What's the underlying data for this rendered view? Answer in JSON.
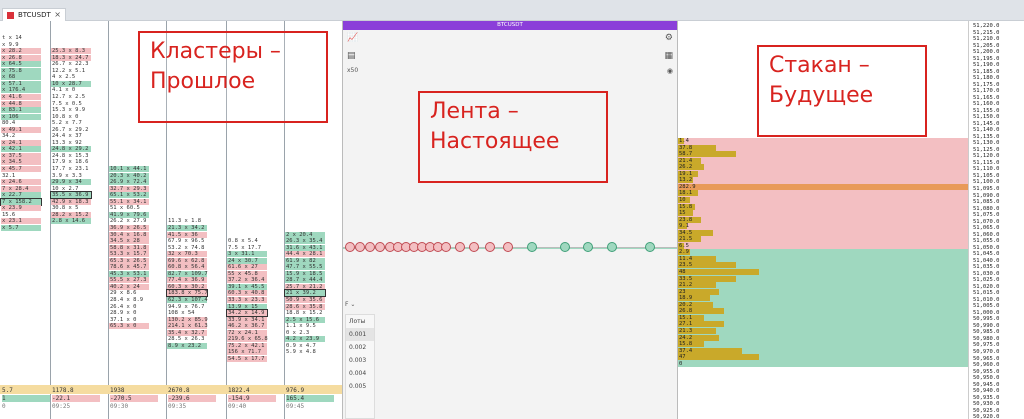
{
  "tab": {
    "title": "BTCUSDT",
    "close": "×"
  },
  "tape": {
    "header": "BTCUSDT",
    "zoom": "x50",
    "filter_label": "F",
    "lots_header": "Лоты",
    "lots": [
      "0.001",
      "0.002",
      "0.003",
      "0.004",
      "0.005"
    ]
  },
  "annotations": {
    "past": [
      "Кластеры –",
      "Прошлое"
    ],
    "present": [
      "Лента –",
      "Настоящее"
    ],
    "future": [
      "Стакан –",
      "Будущее"
    ]
  },
  "cluster_footer": {
    "totals": [
      "5.7",
      "1178.8",
      "1938",
      "2670.8",
      "1822.4",
      "976.9"
    ],
    "deltas": [
      "1",
      "-22.1",
      "-270.5",
      "-239.6",
      "-154.9",
      "165.4"
    ],
    "times": [
      "0",
      "09:25",
      "09:30",
      "09:35",
      "09:40",
      "09:45"
    ]
  },
  "price_axis": [
    "51,220.0",
    "51,215.0",
    "51,210.0",
    "51,205.0",
    "51,200.0",
    "51,195.0",
    "51,190.0",
    "51,185.0",
    "51,180.0",
    "51,175.0",
    "51,170.0",
    "51,165.0",
    "51,160.0",
    "51,155.0",
    "51,150.0",
    "51,145.0",
    "51,140.0",
    "51,135.0",
    "51,130.0",
    "51,125.0",
    "51,120.0",
    "51,115.0",
    "51,110.0",
    "51,105.0",
    "51,100.0",
    "51,095.0",
    "51,090.0",
    "51,085.0",
    "51,080.0",
    "51,075.0",
    "51,070.0",
    "51,065.0",
    "51,060.0",
    "51,055.0",
    "51,050.0",
    "51,045.0",
    "51,040.0",
    "51,035.0",
    "51,030.0",
    "51,025.0",
    "51,020.0",
    "51,015.0",
    "51,010.0",
    "51,005.0",
    "51,000.0",
    "50,995.0",
    "50,990.0",
    "50,985.0",
    "50,980.0",
    "50,975.0",
    "50,970.0",
    "50,965.0",
    "50,960.0",
    "50,955.0",
    "50,950.0",
    "50,945.0",
    "50,940.0",
    "50,935.0",
    "50,930.0",
    "50,925.0",
    "50,920.0"
  ],
  "dom": {
    "asks": [
      "1.4",
      "37.8",
      "58.7",
      "21.4",
      "26.2",
      "19.1",
      "13.2",
      "282.9",
      "18.1",
      "10",
      "15.8",
      "15",
      "23.8",
      "9.1",
      "34.5",
      "21.5",
      "6.5"
    ],
    "bids": [
      "2.9",
      "11.4",
      "23.5",
      "48",
      "33.5",
      "21.2",
      "23",
      "18.9",
      "20.2",
      "26.8",
      "15.1",
      "27.1",
      "21.3",
      "24.2",
      "15.8",
      "37.4",
      "47",
      "0"
    ],
    "ask_sizes": [
      0.02,
      0.13,
      0.2,
      0.08,
      0.09,
      0.07,
      0.05,
      1.0,
      0.07,
      0.04,
      0.06,
      0.05,
      0.08,
      0.03,
      0.12,
      0.08,
      0.02
    ],
    "bid_sizes": [
      0.04,
      0.13,
      0.2,
      0.28,
      0.2,
      0.13,
      0.14,
      0.11,
      0.12,
      0.16,
      0.09,
      0.16,
      0.13,
      0.14,
      0.09,
      0.22,
      0.28,
      0.0
    ]
  },
  "clusters": [
    {
      "col": 0,
      "cells": [
        {
          "r": 0,
          "t": "t x 14"
        },
        {
          "r": 1,
          "t": "x 9.9"
        },
        {
          "r": 2,
          "t": "x 28.2",
          "c": "red"
        },
        {
          "r": 3,
          "t": "x 26.8",
          "c": "red"
        },
        {
          "r": 4,
          "t": "x 64.5",
          "c": "grn"
        },
        {
          "r": 5,
          "t": "x 75.8",
          "c": "grn"
        },
        {
          "r": 6,
          "t": "x 68",
          "c": "grn"
        },
        {
          "r": 7,
          "t": "x 57.1",
          "c": "grn"
        },
        {
          "r": 8,
          "t": "x 176.4",
          "c": "grn"
        },
        {
          "r": 9,
          "t": "x 41.6",
          "c": "red"
        },
        {
          "r": 10,
          "t": "x 44.8",
          "c": "red"
        },
        {
          "r": 11,
          "t": "x 83.1",
          "c": "grn"
        },
        {
          "r": 12,
          "t": "x 106",
          "c": "grn"
        },
        {
          "r": 13,
          "t": "80.4"
        },
        {
          "r": 14,
          "t": "x 49.1",
          "c": "red"
        },
        {
          "r": 15,
          "t": "34.2"
        },
        {
          "r": 16,
          "t": "x 24.1",
          "c": "red"
        },
        {
          "r": 17,
          "t": "x 42.1",
          "c": "grn"
        },
        {
          "r": 18,
          "t": "x 37.5",
          "c": "red"
        },
        {
          "r": 19,
          "t": "x 34.5",
          "c": "red"
        },
        {
          "r": 20,
          "t": "x 45.7",
          "c": "red"
        },
        {
          "r": 21,
          "t": "32.1"
        },
        {
          "r": 22,
          "t": "x 24.6",
          "c": "red"
        },
        {
          "r": 23,
          "t": "7 x 28.4",
          "c": "red"
        },
        {
          "r": 24,
          "t": "x 22.7",
          "c": "grn"
        },
        {
          "r": 25,
          "t": "7 x 158.2",
          "c": "grn",
          "poc": true
        },
        {
          "r": 26,
          "t": "x 23.9",
          "c": "red"
        },
        {
          "r": 27,
          "t": "15.6"
        },
        {
          "r": 28,
          "t": "x 23.1",
          "c": "red"
        },
        {
          "r": 29,
          "t": "x 5.7",
          "c": "grn"
        }
      ]
    },
    {
      "col": 1,
      "cells": [
        {
          "r": 2,
          "t": "25.3 x 8.3",
          "c": "red"
        },
        {
          "r": 3,
          "t": "18.3 x 24.7",
          "c": "red"
        },
        {
          "r": 4,
          "t": "26.7 x 22.3"
        },
        {
          "r": 5,
          "t": "12.2 x 5.1"
        },
        {
          "r": 6,
          "t": "4 x 2.5"
        },
        {
          "r": 7,
          "t": "10 x 28.7",
          "c": "grn"
        },
        {
          "r": 8,
          "t": "4.1 x 0"
        },
        {
          "r": 9,
          "t": "12.7 x 2.5"
        },
        {
          "r": 10,
          "t": "7.5 x 0.5"
        },
        {
          "r": 11,
          "t": "15.3 x 9.9"
        },
        {
          "r": 12,
          "t": "10.8 x 0"
        },
        {
          "r": 13,
          "t": "5.2 x 7.7"
        },
        {
          "r": 14,
          "t": "26.7 x 29.2"
        },
        {
          "r": 15,
          "t": "24.4 x 37"
        },
        {
          "r": 16,
          "t": "13.3 x 92"
        },
        {
          "r": 17,
          "t": "24.8 x 29.2",
          "c": "grn"
        },
        {
          "r": 18,
          "t": "24.8 x 15.3"
        },
        {
          "r": 19,
          "t": "17.9 x 18.6"
        },
        {
          "r": 20,
          "t": "17.7 x 23.1"
        },
        {
          "r": 21,
          "t": "3.9 x 3.3"
        },
        {
          "r": 22,
          "t": "29.9 x 34",
          "c": "grn"
        },
        {
          "r": 23,
          "t": "10 x 2.7"
        },
        {
          "r": 24,
          "t": "35.5 x 36.9",
          "c": "grn",
          "poc": true
        },
        {
          "r": 25,
          "t": "42.9 x 18.3",
          "c": "red"
        },
        {
          "r": 26,
          "t": "30.8 x 5"
        },
        {
          "r": 27,
          "t": "28.2 x 15.2",
          "c": "red"
        },
        {
          "r": 28,
          "t": "2.8 x 14.6",
          "c": "grn"
        }
      ]
    },
    {
      "col": 2,
      "cells": [
        {
          "r": 20,
          "t": "10.1 x 44.1",
          "c": "grn"
        },
        {
          "r": 21,
          "t": "20.3 x 40.2",
          "c": "grn"
        },
        {
          "r": 22,
          "t": "26.9 x 72.4",
          "c": "grn"
        },
        {
          "r": 23,
          "t": "32.7 x 29.3",
          "c": "red"
        },
        {
          "r": 24,
          "t": "65.1 x 53.2",
          "c": "grn"
        },
        {
          "r": 25,
          "t": "55.1 x 34.1",
          "c": "red"
        },
        {
          "r": 26,
          "t": "51 x 60.5"
        },
        {
          "r": 27,
          "t": "41.9 x 79.6",
          "c": "grn"
        },
        {
          "r": 28,
          "t": "26.2 x 27.9"
        },
        {
          "r": 29,
          "t": "36.9 x 26.5",
          "c": "red"
        },
        {
          "r": 30,
          "t": "30.4 x 16.8",
          "c": "red"
        },
        {
          "r": 31,
          "t": "34.5 x 28",
          "c": "red"
        },
        {
          "r": 32,
          "t": "58.8 x 31.8",
          "c": "red"
        },
        {
          "r": 33,
          "t": "53.3 x 15.7",
          "c": "red"
        },
        {
          "r": 34,
          "t": "65.3 x 26.5",
          "c": "red"
        },
        {
          "r": 35,
          "t": "78.6 x 45.7",
          "c": "red"
        },
        {
          "r": 36,
          "t": "45.3 x 53.1",
          "c": "grn"
        },
        {
          "r": 37,
          "t": "55.5 x 27.3",
          "c": "red"
        },
        {
          "r": 38,
          "t": "40.2 x 24",
          "c": "red"
        },
        {
          "r": 39,
          "t": "29 x 8.6"
        },
        {
          "r": 40,
          "t": "28.4 x 8.9"
        },
        {
          "r": 41,
          "t": "26.4 x 0"
        },
        {
          "r": 42,
          "t": "28.9 x 0"
        },
        {
          "r": 43,
          "t": "37.1 x 0"
        },
        {
          "r": 44,
          "t": "65.3 x 0",
          "c": "red"
        }
      ]
    },
    {
      "col": 3,
      "cells": [
        {
          "r": 28,
          "t": "11.3 x 1.8"
        },
        {
          "r": 29,
          "t": "21.3 x 34.2",
          "c": "grn"
        },
        {
          "r": 30,
          "t": "41.5 x 36",
          "c": "red"
        },
        {
          "r": 31,
          "t": "67.9 x 96.5"
        },
        {
          "r": 32,
          "t": "53.2 x 74.8"
        },
        {
          "r": 33,
          "t": "32 x 70.3",
          "c": "red"
        },
        {
          "r": 34,
          "t": "69.6 x 62.8",
          "c": "red"
        },
        {
          "r": 35,
          "t": "60.8 x 56.4",
          "c": "red"
        },
        {
          "r": 36,
          "t": "82.7 x 109.7",
          "c": "grn"
        },
        {
          "r": 37,
          "t": "77.4 x 36.9",
          "c": "red"
        },
        {
          "r": 38,
          "t": "60.3 x 30.2",
          "c": "red"
        },
        {
          "r": 39,
          "t": "183.8 x 75.7",
          "c": "red",
          "poc": true
        },
        {
          "r": 40,
          "t": "62.3 x 107.4",
          "c": "grn"
        },
        {
          "r": 41,
          "t": "94.9 x 76.7"
        },
        {
          "r": 42,
          "t": "108 x 54"
        },
        {
          "r": 43,
          "t": "130.2 x 85.9",
          "c": "red"
        },
        {
          "r": 44,
          "t": "214.1 x 61.3",
          "c": "red"
        },
        {
          "r": 45,
          "t": "35.4 x 32.7",
          "c": "red"
        },
        {
          "r": 46,
          "t": "28.5 x 26.3"
        },
        {
          "r": 47,
          "t": "8.9 x 23.2",
          "c": "grn"
        }
      ]
    },
    {
      "col": 4,
      "cells": [
        {
          "r": 31,
          "t": "0.8 x 5.4"
        },
        {
          "r": 32,
          "t": "7.5 x 17.7"
        },
        {
          "r": 33,
          "t": "3 x 31.1",
          "c": "grn"
        },
        {
          "r": 34,
          "t": "24 x 30.7",
          "c": "grn"
        },
        {
          "r": 35,
          "t": "61.6 x 27",
          "c": "red"
        },
        {
          "r": 36,
          "t": "55 x 45.8",
          "c": "red"
        },
        {
          "r": 37,
          "t": "37.2 x 36.4",
          "c": "red"
        },
        {
          "r": 38,
          "t": "39.1 x 45.5",
          "c": "grn"
        },
        {
          "r": 39,
          "t": "60.3 x 40.8",
          "c": "red"
        },
        {
          "r": 40,
          "t": "33.3 x 23.3",
          "c": "red"
        },
        {
          "r": 41,
          "t": "13.9 x 15",
          "c": "grn"
        },
        {
          "r": 42,
          "t": "34.2 x 14.9",
          "c": "red",
          "poc": true
        },
        {
          "r": 43,
          "t": "33.9 x 34.1",
          "c": "red"
        },
        {
          "r": 44,
          "t": "46.2 x 36.7",
          "c": "red"
        },
        {
          "r": 45,
          "t": "72 x 24.1",
          "c": "red"
        },
        {
          "r": 46,
          "t": "219.6 x 65.8",
          "c": "red"
        },
        {
          "r": 47,
          "t": "75.2 x 42.1",
          "c": "red"
        },
        {
          "r": 48,
          "t": "156 x 71.7",
          "c": "red"
        },
        {
          "r": 49,
          "t": "54.5 x 17.7",
          "c": "red"
        }
      ]
    },
    {
      "col": 5,
      "cells": [
        {
          "r": 30,
          "t": "2 x 20.4",
          "c": "grn"
        },
        {
          "r": 31,
          "t": "26.3 x 35.4",
          "c": "grn"
        },
        {
          "r": 32,
          "t": "31.6 x 43.1",
          "c": "grn"
        },
        {
          "r": 33,
          "t": "44.4 x 28.1",
          "c": "red"
        },
        {
          "r": 34,
          "t": "61.9 x 82",
          "c": "grn"
        },
        {
          "r": 35,
          "t": "47.7 x 55.5",
          "c": "grn"
        },
        {
          "r": 36,
          "t": "15.9 x 18.5",
          "c": "grn"
        },
        {
          "r": 37,
          "t": "28.7 x 44.4",
          "c": "grn"
        },
        {
          "r": 38,
          "t": "25.7 x 21.2",
          "c": "red"
        },
        {
          "r": 39,
          "t": "21 x 39.2",
          "c": "grn",
          "poc": true
        },
        {
          "r": 40,
          "t": "50.9 x 35.6",
          "c": "red"
        },
        {
          "r": 41,
          "t": "28.6 x 35.8",
          "c": "red"
        },
        {
          "r": 42,
          "t": "18.8 x 15.2"
        },
        {
          "r": 43,
          "t": "2.5 x 15.6",
          "c": "grn"
        },
        {
          "r": 44,
          "t": "1.1 x 9.5"
        },
        {
          "r": 45,
          "t": "0 x 2.3"
        },
        {
          "r": 46,
          "t": "4.2 x 23.9",
          "c": "grn"
        },
        {
          "r": 47,
          "t": "0.9 x 4.7"
        },
        {
          "r": 48,
          "t": "5.9 x 4.8"
        }
      ]
    }
  ]
}
